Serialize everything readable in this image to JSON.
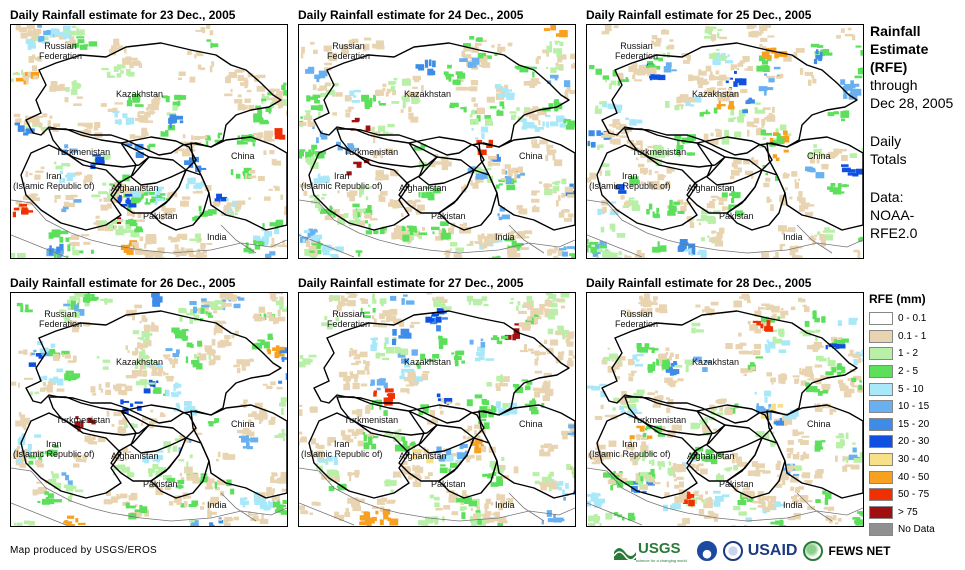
{
  "maps": [
    {
      "title": "Daily Rainfall estimate for 23 Dec., 2005",
      "seed": 23
    },
    {
      "title": "Daily Rainfall estimate for 24 Dec., 2005",
      "seed": 24
    },
    {
      "title": "Daily Rainfall estimate for 25 Dec., 2005",
      "seed": 25
    },
    {
      "title": "Daily Rainfall estimate for 26 Dec., 2005",
      "seed": 26
    },
    {
      "title": "Daily Rainfall estimate for 27 Dec., 2005",
      "seed": 27
    },
    {
      "title": "Daily Rainfall estimate for 28 Dec., 2005",
      "seed": 28
    }
  ],
  "countries": {
    "russia": "Russian\nFederation",
    "kazakhstan": "Kazakhstan",
    "turkmenistan": "Turkmenistan",
    "iran": "Iran\n(Islamic Republic of)",
    "afghanistan": "Afghanistan",
    "pakistan": "Pakistan",
    "china": "China",
    "india": "India"
  },
  "info": {
    "heading_line1": "Rainfall",
    "heading_line2": "Estimate",
    "heading_line3": "(RFE)",
    "through_label": "through",
    "through_date": "Dec 28, 2005",
    "totals_line1": "Daily",
    "totals_line2": "Totals",
    "data_label": "Data:",
    "data_source1": "NOAA-",
    "data_source2": "RFE2.0"
  },
  "legend": {
    "title": "RFE (mm)",
    "items": [
      {
        "label": "0 - 0.1",
        "color": "#ffffff"
      },
      {
        "label": "0.1 - 1",
        "color": "#e8d4b0"
      },
      {
        "label": "1 - 2",
        "color": "#b8f0a8"
      },
      {
        "label": "2 - 5",
        "color": "#5ce05c"
      },
      {
        "label": "5 - 10",
        "color": "#a8e8f8"
      },
      {
        "label": "10 - 15",
        "color": "#68b0f0"
      },
      {
        "label": "15 - 20",
        "color": "#3c8ce8"
      },
      {
        "label": "20 - 30",
        "color": "#1050e0"
      },
      {
        "label": "30 - 40",
        "color": "#f8e088"
      },
      {
        "label": "40 - 50",
        "color": "#f8a020"
      },
      {
        "label": "50 - 75",
        "color": "#f03000"
      },
      {
        "label": "> 75",
        "color": "#a01010"
      },
      {
        "label": "No Data",
        "color": "#909090"
      }
    ]
  },
  "credit": "Map produced by USGS/EROS",
  "logos": {
    "usgs": "USGS",
    "usgs_tagline": "science for a changing world",
    "usaid": "USAID",
    "fewsnet": "FEWS NET"
  }
}
